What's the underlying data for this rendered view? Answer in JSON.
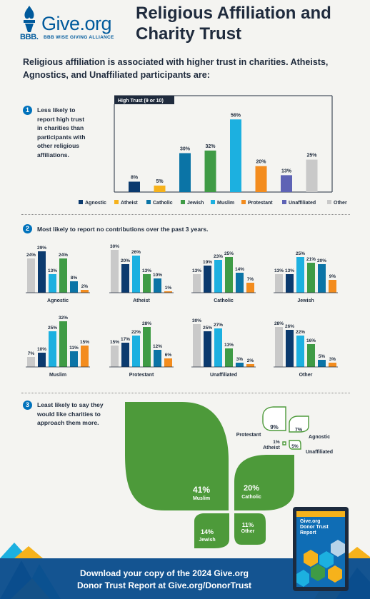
{
  "header": {
    "brand": "Give.org",
    "bbb": "BBB.",
    "tagline": "BBB WISE GIVING ALLIANCE",
    "title_line1": "Religious Affiliation and",
    "title_line2": "Charity Trust"
  },
  "intro": "Religious affiliation is associated with higher trust in charities. Atheists, Agnostics, and Unaffiliated participants are:",
  "sections": [
    {
      "number": "1",
      "text_lines": [
        "Less likely to",
        "report high trust",
        "in charities than",
        "participants with",
        "other religious",
        "affiliations."
      ]
    },
    {
      "number": "2",
      "text": "Most likely to report no contributions over the past 3 years."
    },
    {
      "number": "3",
      "text_lines": [
        "Least likely to say they",
        "would like charities to",
        "approach them more."
      ]
    }
  ],
  "colors": {
    "Agnostic": "#0b3a6e",
    "Atheist": "#f6b21b",
    "Catholic": "#0b74a6",
    "Jewish": "#3f9b45",
    "Muslim": "#1cb0e0",
    "Protestant": "#f38c1e",
    "Unaffiliated": "#5e63b5",
    "Other": "#c9c9c9",
    "accent_blue": "#0072bc",
    "leaf_green": "#4d9a3a"
  },
  "chart_data": [
    {
      "type": "bar",
      "title": "High Trust (9 or 10)",
      "categories": [
        "Agnostic",
        "Atheist",
        "Catholic",
        "Jewish",
        "Muslim",
        "Protestant",
        "Unaffiliated",
        "Other"
      ],
      "values": [
        8,
        5,
        30,
        32,
        56,
        20,
        13,
        25
      ],
      "value_labels": [
        "8%",
        "5%",
        "30%",
        "32%",
        "56%",
        "20%",
        "13%",
        "25%"
      ],
      "ylim": [
        0,
        60
      ],
      "legend": "bottom"
    },
    {
      "type": "bar",
      "title": "",
      "series_order": [
        "Other",
        "Agnostic",
        "Muslim",
        "Jewish",
        "Catholic",
        "Protestant"
      ],
      "groups": [
        {
          "name": "Agnostic",
          "values": [
            24,
            29,
            13,
            24,
            8,
            2
          ]
        },
        {
          "name": "Atheist",
          "values": [
            30,
            20,
            26,
            13,
            10,
            1
          ]
        },
        {
          "name": "Catholic",
          "values": [
            13,
            19,
            23,
            25,
            14,
            7
          ]
        },
        {
          "name": "Jewish",
          "values": [
            13,
            13,
            25,
            21,
            20,
            9
          ]
        },
        {
          "name": "Muslim",
          "values": [
            7,
            10,
            25,
            32,
            11,
            15
          ]
        },
        {
          "name": "Protestant",
          "values": [
            15,
            17,
            22,
            28,
            12,
            6
          ]
        },
        {
          "name": "Unaffiliated",
          "values": [
            30,
            25,
            27,
            13,
            3,
            2
          ]
        },
        {
          "name": "Other",
          "values": [
            28,
            26,
            22,
            16,
            5,
            3
          ]
        }
      ],
      "ylim": [
        0,
        35
      ]
    },
    {
      "type": "pie",
      "title": "",
      "categories": [
        "Muslim",
        "Catholic",
        "Jewish",
        "Other",
        "Protestant",
        "Agnostic",
        "Atheist",
        "Unaffiliated"
      ],
      "values": [
        41,
        20,
        14,
        11,
        9,
        7,
        1,
        5
      ],
      "value_labels": [
        "41%",
        "20%",
        "14%",
        "11%",
        "9%",
        "7%",
        "1%",
        "5%"
      ]
    }
  ],
  "footer": {
    "line1": "Download your copy of the 2024 Give.org",
    "line2": "Donor Trust Report at Give.org/DonorTrust"
  },
  "report": {
    "line1": "Give.org",
    "line2": "Donor Trust",
    "line3": "Report"
  }
}
